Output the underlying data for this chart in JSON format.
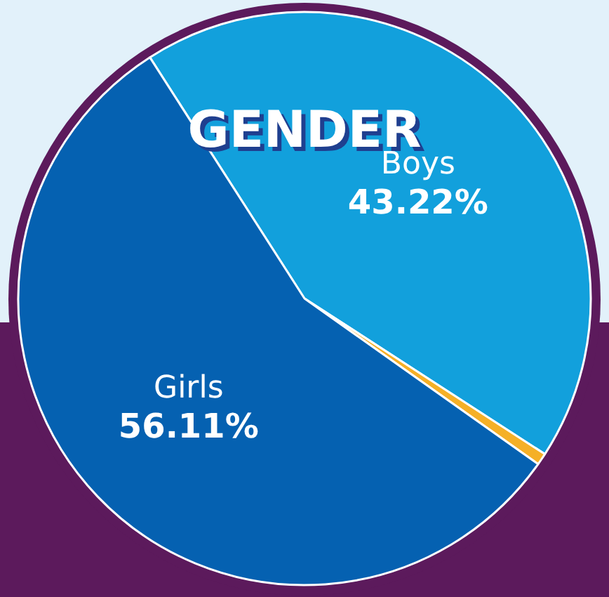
{
  "chart_data": {
    "type": "pie",
    "title": "GENDER",
    "categories": [
      "Boys",
      null,
      "Girls"
    ],
    "values": [
      43.22,
      0.67,
      56.11
    ],
    "value_labels": [
      "43.22%",
      null,
      "56.11%"
    ],
    "colors": [
      "#12a0dc",
      "#f5b027",
      "#0561b1"
    ],
    "legend": false
  }
}
